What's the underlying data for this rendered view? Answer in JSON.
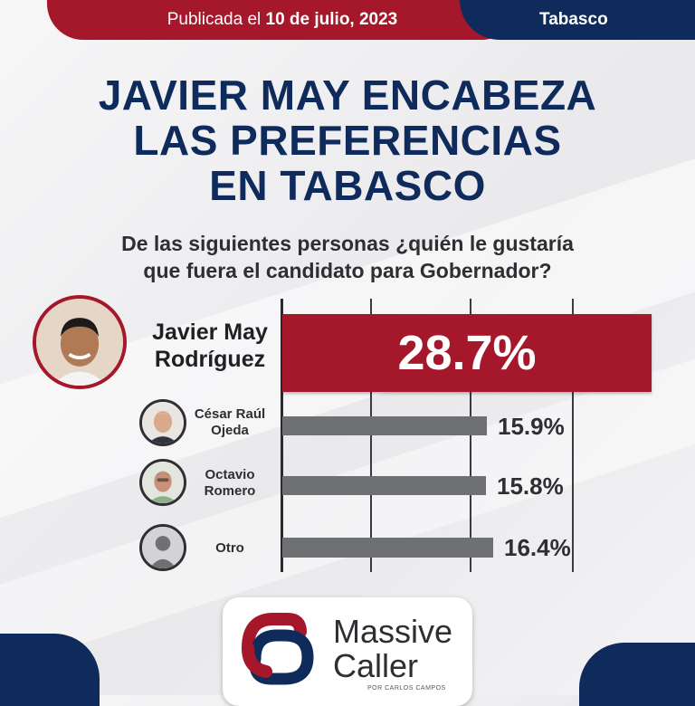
{
  "header": {
    "date_prefix": "Publicada el ",
    "date_value": "10 de julio, 2023",
    "region": "Tabasco"
  },
  "headline": [
    "JAVIER MAY ENCABEZA",
    "LAS PREFERENCIAS",
    "EN TABASCO"
  ],
  "question": [
    "De las siguientes personas ¿quién le gustaría",
    "que fuera el candidato para Gobernador?"
  ],
  "colors": {
    "leader_bar": "#a5172b",
    "other_bar": "#6f7072",
    "navy": "#0f2b5b"
  },
  "chart_data": {
    "type": "bar",
    "orientation": "horizontal",
    "title": "",
    "xlabel": "",
    "ylabel": "",
    "categories": [
      "Javier May Rodríguez",
      "César Raúl Ojeda",
      "Octavio Romero",
      "Otro"
    ],
    "values": [
      28.7,
      15.9,
      15.8,
      16.4
    ],
    "value_labels": [
      "28.7%",
      "15.9%",
      "15.8%",
      "16.4%"
    ],
    "label_lines": [
      [
        "Javier May",
        "Rodríguez"
      ],
      [
        "César Raúl",
        "Ojeda"
      ],
      [
        "Octavio",
        "Romero"
      ],
      [
        "Otro"
      ]
    ],
    "grid": true,
    "legend": "none"
  },
  "logo": {
    "line1": "Massive",
    "line2": "Caller",
    "sub": "POR CARLOS CAMPOS"
  }
}
